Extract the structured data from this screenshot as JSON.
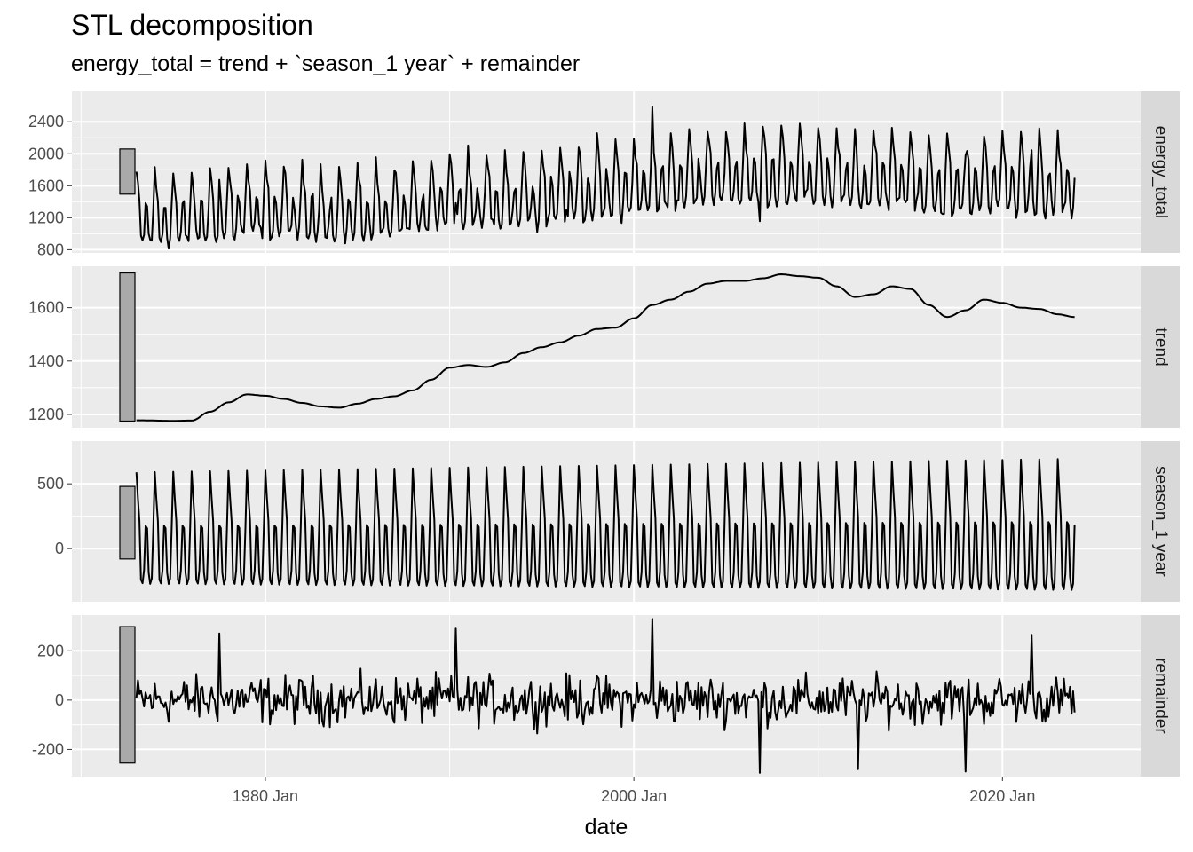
{
  "title": "STL decomposition",
  "subtitle": "energy_total = trend + `season_1 year` + remainder",
  "chart_data": {
    "type": "line",
    "xlabel": "date",
    "x_start": "1973 Jan",
    "x_end": "2023 Dec",
    "xlim": [
      "1969 Jul",
      "2027 Jul"
    ],
    "x_ticks": [
      {
        "label": "1980 Jan",
        "value": 1980.0
      },
      {
        "label": "2000 Jan",
        "value": 2000.0
      },
      {
        "label": "2020 Jan",
        "value": 2020.0
      }
    ],
    "grid": true,
    "colors": {
      "line": "#000000",
      "panel": "#ebebeb",
      "strip": "#d9d9d9",
      "grid": "#ffffff",
      "scale_bar": "#a9a9a9"
    },
    "panels": [
      {
        "name": "energy_total",
        "strip_label": "energy_total",
        "ylim": [
          760,
          2780
        ],
        "y_ticks": [
          800,
          1200,
          1600,
          2000,
          2400
        ],
        "y_tick_labels": [
          "800",
          "1200",
          "1600",
          "2000",
          "2400"
        ],
        "scale_bar_range": [
          1495,
          2060
        ]
      },
      {
        "name": "trend",
        "strip_label": "trend",
        "ylim": [
          1150,
          1755
        ],
        "y_ticks": [
          1200,
          1400,
          1600
        ],
        "y_tick_labels": [
          "1200",
          "1400",
          "1600"
        ],
        "scale_bar_range": [
          1175,
          1730
        ],
        "trend_points": [
          [
            1973,
            1178
          ],
          [
            1975,
            1176
          ],
          [
            1976,
            1177
          ],
          [
            1977,
            1210
          ],
          [
            1978,
            1245
          ],
          [
            1979,
            1275
          ],
          [
            1980,
            1270
          ],
          [
            1981,
            1258
          ],
          [
            1982,
            1243
          ],
          [
            1983,
            1230
          ],
          [
            1984,
            1225
          ],
          [
            1985,
            1240
          ],
          [
            1986,
            1258
          ],
          [
            1987,
            1268
          ],
          [
            1988,
            1290
          ],
          [
            1989,
            1330
          ],
          [
            1990,
            1375
          ],
          [
            1991,
            1385
          ],
          [
            1992,
            1378
          ],
          [
            1993,
            1395
          ],
          [
            1994,
            1430
          ],
          [
            1995,
            1452
          ],
          [
            1996,
            1470
          ],
          [
            1997,
            1495
          ],
          [
            1998,
            1520
          ],
          [
            1999,
            1525
          ],
          [
            2000,
            1560
          ],
          [
            2001,
            1610
          ],
          [
            2002,
            1630
          ],
          [
            2003,
            1660
          ],
          [
            2004,
            1690
          ],
          [
            2005,
            1700
          ],
          [
            2006,
            1700
          ],
          [
            2007,
            1710
          ],
          [
            2008,
            1725
          ],
          [
            2009,
            1718
          ],
          [
            2010,
            1712
          ],
          [
            2011,
            1680
          ],
          [
            2012,
            1640
          ],
          [
            2013,
            1650
          ],
          [
            2014,
            1680
          ],
          [
            2015,
            1670
          ],
          [
            2016,
            1610
          ],
          [
            2017,
            1565
          ],
          [
            2018,
            1590
          ],
          [
            2019,
            1630
          ],
          [
            2020,
            1618
          ],
          [
            2021,
            1600
          ],
          [
            2022,
            1595
          ],
          [
            2023,
            1575
          ],
          [
            2023.9,
            1565
          ]
        ]
      },
      {
        "name": "season_1 year",
        "strip_label": "season_1 year",
        "ylim": [
          -410,
          830
        ],
        "y_ticks": [
          0,
          500
        ],
        "y_tick_labels": [
          "0",
          "500"
        ],
        "scale_bar_range": [
          -80,
          480
        ]
      },
      {
        "name": "remainder",
        "strip_label": "remainder",
        "ylim": [
          -310,
          345
        ],
        "y_ticks": [
          -200,
          0,
          200
        ],
        "y_tick_labels": [
          "-200",
          "0",
          "200"
        ],
        "scale_bar_range": [
          -255,
          298
        ]
      }
    ],
    "series_note": "monthly observations 1973 Jan – 2023 Dec; energy_total = trend + season_1 year + remainder"
  }
}
